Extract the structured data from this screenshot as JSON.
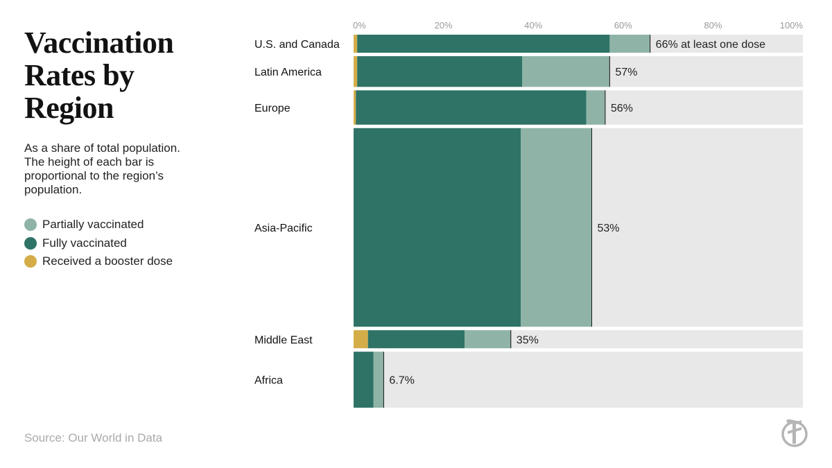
{
  "title": "Vaccination Rates by Region",
  "subtitle": "As a share of total population. The height of each bar is proportional to the region’s population.",
  "legend": [
    {
      "label": "Partially vaccinated",
      "color": "#8fb3a7"
    },
    {
      "label": "Fully vaccinated",
      "color": "#2e7366"
    },
    {
      "label": "Received a booster dose",
      "color": "#d4ad48"
    }
  ],
  "source": "Source: Our World in Data",
  "logo": "nyt-t-logo",
  "colors": {
    "booster": "#d4ad48",
    "fully": "#2e7366",
    "partial": "#8fb3a7",
    "background_bar": "#e8e8e8",
    "marker": "#121212"
  },
  "chart_data": {
    "type": "bar",
    "orientation": "horizontal",
    "stacked": true,
    "title": "Vaccination Rates by Region",
    "x_ticks": [
      "0%",
      "20%",
      "40%",
      "60%",
      "80%",
      "100%"
    ],
    "xlim": [
      0,
      100
    ],
    "categories": [
      "U.S. and Canada",
      "Latin America",
      "Europe",
      "Asia-Pacific",
      "Middle East",
      "Africa"
    ],
    "population_weights": [
      1,
      1.7,
      1.9,
      11,
      1,
      3.1
    ],
    "series": [
      {
        "name": "Received a booster dose",
        "values": [
          0.8,
          0.8,
          0.5,
          0,
          3.2,
          0
        ]
      },
      {
        "name": "Fully vaccinated",
        "values": [
          56.2,
          36.7,
          51.3,
          37.2,
          21.5,
          4.4
        ]
      },
      {
        "name": "Partially vaccinated",
        "values": [
          9,
          19.5,
          4.2,
          15.8,
          10.3,
          2.3
        ]
      }
    ],
    "totals": [
      66,
      57,
      56,
      53,
      35,
      6.7
    ],
    "total_labels": [
      "66% at least one dose",
      "57%",
      "56%",
      "53%",
      "35%",
      "6.7%"
    ],
    "grid": false,
    "legend_position": "left"
  }
}
